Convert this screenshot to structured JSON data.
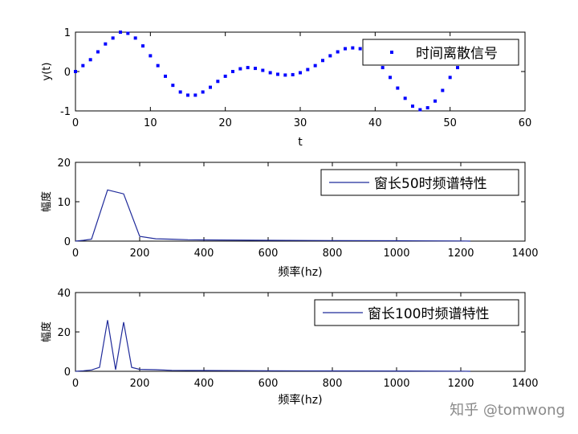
{
  "chart_data": [
    {
      "type": "scatter",
      "xlabel": "t",
      "ylabel": "y(t)",
      "xlim": [
        0,
        60
      ],
      "ylim": [
        -1,
        1
      ],
      "xticks": [
        "0",
        "10",
        "20",
        "30",
        "40",
        "50",
        "60"
      ],
      "yticks": [
        "-1",
        "0",
        "1"
      ],
      "legend": "top-right",
      "grid": false,
      "series": [
        {
          "name": "时间离散信号",
          "color": "#0000ff",
          "marker": "dot",
          "x": [
            0,
            1,
            2,
            3,
            4,
            5,
            6,
            7,
            8,
            9,
            10,
            11,
            12,
            13,
            14,
            15,
            16,
            17,
            18,
            19,
            20,
            21,
            22,
            23,
            24,
            25,
            26,
            27,
            28,
            29,
            30,
            31,
            32,
            33,
            34,
            35,
            36,
            37,
            38,
            39,
            40,
            41,
            42,
            43,
            44,
            45,
            46,
            47,
            48,
            49,
            50,
            51
          ],
          "y": [
            0,
            0.15,
            0.3,
            0.5,
            0.7,
            0.85,
            1.0,
            0.97,
            0.85,
            0.65,
            0.4,
            0.15,
            -0.12,
            -0.35,
            -0.52,
            -0.6,
            -0.6,
            -0.52,
            -0.4,
            -0.25,
            -0.12,
            0,
            0.07,
            0.1,
            0.08,
            0.03,
            -0.03,
            -0.07,
            -0.09,
            -0.08,
            -0.03,
            0.05,
            0.15,
            0.28,
            0.4,
            0.5,
            0.58,
            0.6,
            0.58,
            0.45,
            0.3,
            0.1,
            -0.15,
            -0.42,
            -0.68,
            -0.88,
            -0.97,
            -0.92,
            -0.75,
            -0.48,
            -0.15,
            0.1
          ]
        }
      ]
    },
    {
      "type": "line",
      "xlabel": "频率(hz)",
      "ylabel": "幅度",
      "xlim": [
        0,
        1400
      ],
      "ylim": [
        0,
        20
      ],
      "xticks": [
        "0",
        "200",
        "400",
        "600",
        "800",
        "1000",
        "1200",
        "1400"
      ],
      "yticks": [
        "0",
        "10",
        "20"
      ],
      "legend": "top-right",
      "grid": false,
      "series": [
        {
          "name": "窗长50时频谱特性",
          "color": "#1f2a9a",
          "x": [
            0,
            25,
            50,
            100,
            150,
            200,
            250,
            300,
            350,
            400,
            600,
            800,
            1000,
            1200,
            1230
          ],
          "y": [
            0,
            0.2,
            0.5,
            13,
            12,
            1.2,
            0.6,
            0.5,
            0.35,
            0.3,
            0.2,
            0.15,
            0.1,
            0.05,
            0
          ]
        }
      ]
    },
    {
      "type": "line",
      "xlabel": "频率(hz)",
      "ylabel": "幅度",
      "xlim": [
        0,
        1400
      ],
      "ylim": [
        0,
        40
      ],
      "xticks": [
        "0",
        "200",
        "400",
        "600",
        "800",
        "1000",
        "1200",
        "1400"
      ],
      "yticks": [
        "0",
        "20",
        "40"
      ],
      "legend": "top-right",
      "grid": false,
      "series": [
        {
          "name": "窗长100时频谱特性",
          "color": "#1f2a9a",
          "x": [
            0,
            25,
            50,
            75,
            100,
            125,
            150,
            175,
            200,
            250,
            300,
            400,
            600,
            800,
            1000,
            1200,
            1230
          ],
          "y": [
            0,
            0.3,
            0.7,
            2,
            26,
            0.8,
            25,
            2,
            1,
            0.8,
            0.5,
            0.4,
            0.3,
            0.2,
            0.15,
            0.1,
            0
          ]
        }
      ]
    }
  ],
  "watermark": "知乎 @tomwong"
}
